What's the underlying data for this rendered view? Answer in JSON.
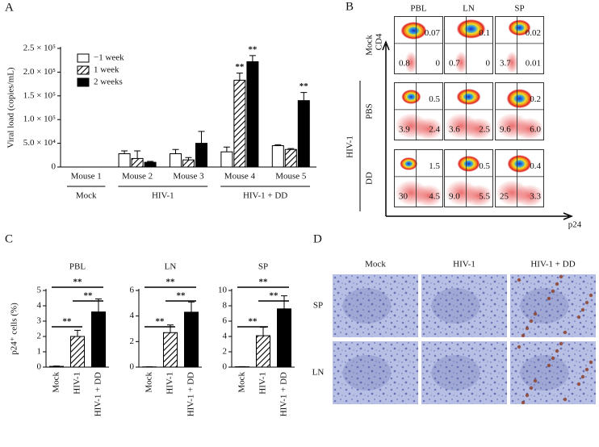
{
  "chart_data": [
    {
      "type": "bar",
      "panel_label": "A",
      "y_label": "Viral load (copies/mL)",
      "categories": [
        "Mouse 1",
        "Mouse 2",
        "Mouse 3",
        "Mouse 4",
        "Mouse 5"
      ],
      "category_groups": [
        "Mock",
        "HIV-1",
        "HIV-1 + DD"
      ],
      "group_sizes": [
        1,
        2,
        2
      ],
      "series": [
        {
          "name": "−1 week",
          "color": "#ffffff",
          "values": [
            0,
            28000,
            28000,
            32000,
            45000
          ],
          "errors": [
            0,
            6000,
            9000,
            10000,
            2000
          ],
          "significance": [
            null,
            null,
            null,
            null,
            null
          ]
        },
        {
          "name": "1 week",
          "color": "#000000",
          "pattern": "hatch",
          "values": [
            0,
            18000,
            15000,
            183000,
            37000
          ],
          "errors": [
            0,
            16000,
            5000,
            15000,
            2000
          ],
          "significance": [
            null,
            null,
            null,
            "**",
            null
          ]
        },
        {
          "name": "2 weeks",
          "color": "#000000",
          "values": [
            0,
            10000,
            50000,
            222000,
            140000
          ],
          "errors": [
            0,
            2000,
            25000,
            13000,
            17000
          ],
          "significance": [
            null,
            null,
            null,
            "**",
            "**"
          ]
        }
      ],
      "ylim": [
        0,
        250000
      ],
      "yticks": [
        0,
        {
          "value": 50000,
          "label": "5.0 × 10⁴"
        },
        {
          "value": 100000,
          "label": "1.0 × 10⁵"
        },
        {
          "value": 150000,
          "label": "1.5 × 10⁵"
        },
        {
          "value": 200000,
          "label": "2.0 × 10⁵"
        },
        {
          "value": 250000,
          "label": "2.5 × 10⁵"
        }
      ],
      "legend": "upper left"
    },
    {
      "type": "bar",
      "panel_label": "C",
      "title": "PBL",
      "y_label": "p24⁺ cells (%)",
      "categories": [
        "Mock",
        "HIV-1",
        "HIV-1 + DD"
      ],
      "values": [
        0.05,
        2.0,
        3.6
      ],
      "errors": [
        0.02,
        0.4,
        0.85
      ],
      "colors": [
        "#ffffff",
        "#000000",
        "#000000"
      ],
      "patterns": [
        null,
        "hatch",
        null
      ],
      "significance_labels": [
        "**",
        "**",
        "**"
      ],
      "ylim": [
        0,
        5
      ],
      "yticks": [
        0,
        1,
        2,
        3,
        4,
        5
      ]
    },
    {
      "type": "bar",
      "title": "LN",
      "categories": [
        "Mock",
        "HIV-1",
        "HIV-1 + DD"
      ],
      "values": [
        0.02,
        2.7,
        4.3
      ],
      "errors": [
        0.01,
        0.6,
        0.8
      ],
      "colors": [
        "#ffffff",
        "#000000",
        "#000000"
      ],
      "patterns": [
        null,
        "hatch",
        null
      ],
      "significance_labels": [
        "**",
        "**",
        "**"
      ],
      "ylim": [
        0,
        6
      ],
      "yticks": [
        0,
        2,
        4,
        6
      ]
    },
    {
      "type": "bar",
      "title": "SP",
      "categories": [
        "Mock",
        "HIV-1",
        "HIV-1 + DD"
      ],
      "values": [
        0.05,
        4.1,
        7.6
      ],
      "errors": [
        0.02,
        1.1,
        1.7
      ],
      "colors": [
        "#ffffff",
        "#000000",
        "#000000"
      ],
      "patterns": [
        null,
        "hatch",
        null
      ],
      "significance_labels": [
        "**",
        "**",
        "**"
      ],
      "ylim": [
        0,
        10
      ],
      "yticks": [
        0,
        2,
        4,
        6,
        8,
        10
      ]
    }
  ],
  "flow": {
    "panel_label": "B",
    "columns": [
      "PBL",
      "LN",
      "SP"
    ],
    "y_axis": "CD4",
    "x_axis": "p24",
    "row_group": "HIV-1",
    "rows": [
      {
        "label": "Mock",
        "plots": [
          {
            "upper_right": "0.07",
            "lower_left": "0.8",
            "lower_right": "0"
          },
          {
            "upper_right": "0.1",
            "lower_left": "0.7",
            "lower_right": "0"
          },
          {
            "upper_right": "0.02",
            "lower_left": "3.7",
            "lower_right": "0.01"
          }
        ]
      },
      {
        "label": "PBS",
        "plots": [
          {
            "upper_right": "0.5",
            "lower_left": "3.9",
            "lower_right": "2.4"
          },
          {
            "lower_left": "3.6",
            "lower_right": "2.5"
          },
          {
            "upper_right": "0.2",
            "lower_left": "9.6",
            "lower_right": "6.0"
          }
        ]
      },
      {
        "label": "DD",
        "plots": [
          {
            "upper_right": "1.5",
            "lower_left": "30",
            "lower_right": "4.5"
          },
          {
            "upper_right": "0.5",
            "lower_left": "9.0",
            "lower_right": "5.5"
          },
          {
            "upper_right": "0.4",
            "lower_left": "25",
            "lower_right": "3.3"
          }
        ]
      }
    ]
  },
  "histology": {
    "panel_label": "D",
    "columns": [
      "Mock",
      "HIV-1",
      "HIV-1 + DD"
    ],
    "rows": [
      "SP",
      "LN"
    ]
  }
}
